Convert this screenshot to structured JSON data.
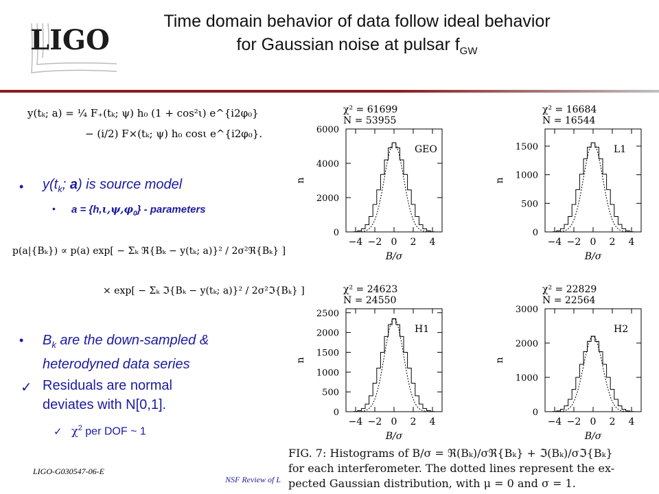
{
  "header": {
    "logo_text": "LIGO",
    "title_line1": "Time domain behavior of data follow ideal behavior",
    "title_line2": "for Gaussian noise at pulsar f",
    "title_sub": "GW"
  },
  "equations": {
    "eq1_line1": "y(tₖ; a) = ¼ F₊(tₖ; ψ) h₀ (1 + cos²ι) e^{i2φ₀}",
    "eq1_line2": "− (i/2) F×(tₖ; ψ) h₀ cosι e^{i2φ₀}.",
    "eq2_line1": "p(a|{Bₖ}) ∝ p(a) exp[ − Σₖ ℜ{Bₖ − y(tₖ; a)}² / 2σ²ℜ{Bₖ} ]",
    "eq2_line2": "× exp[ − Σₖ ℑ{Bₖ − y(tₖ; a)}² / 2σ²ℑ{Bₖ} ]"
  },
  "bullets": {
    "b1_a": "y(t",
    "b1_sub": "k",
    "b1_b": "; ",
    "b1_c": "a",
    "b1_d": ") is source model",
    "b1_1": "a = {h,",
    "b1_1b": "ι,ψ,φ",
    "b1_1sub": "0",
    "b1_1c": "} - parameters",
    "b2_a": "B",
    "b2_sub": "k",
    "b2_b": " are the down-sampled &",
    "b2_c": "heterodyned data series",
    "b3_line1": "Residuals are normal",
    "b3_line2": "deviates with N[0,1].",
    "b3_1_a": "χ",
    "b3_1_sup": "2",
    "b3_1_b": " per DOF ~ 1"
  },
  "footer": {
    "left": "LIGO-G030547-06-E",
    "center": "NSF Review of L"
  },
  "caption": {
    "line1": "FIG. 7: Histograms of B/σ = ℜ(Bₖ)/σℜ{Bₖ} + ℑ(Bₖ)/σℑ{Bₖ}",
    "line2": "for each interferometer.  The dotted lines represent the ex-",
    "line3": "pected Gaussian distribution, with μ = 0 and σ = 1."
  },
  "chart_data": [
    {
      "type": "bar",
      "label": "GEO",
      "chi2_text": "χ² = 61699",
      "n_text": "N = 53955",
      "xlabel": "B/σ",
      "ylabel": "n",
      "xlim": [
        -5,
        5
      ],
      "xticks": [
        -4,
        -2,
        0,
        2,
        4
      ],
      "ylim": [
        0,
        6000
      ],
      "yticks": [
        0,
        2000,
        4000,
        6000
      ],
      "gaussian_dotted": true,
      "hist_x": [
        -4.0,
        -3.6,
        -3.2,
        -2.8,
        -2.4,
        -2.0,
        -1.6,
        -1.2,
        -0.8,
        -0.4,
        0.0,
        0.4,
        0.8,
        1.2,
        1.6,
        2.0,
        2.4,
        2.8,
        3.2,
        3.6,
        4.0
      ],
      "hist_n": [
        10,
        60,
        180,
        420,
        900,
        1600,
        2450,
        3350,
        4200,
        4900,
        5200,
        4900,
        4200,
        3350,
        2450,
        1600,
        900,
        420,
        180,
        60,
        10
      ]
    },
    {
      "type": "bar",
      "label": "L1",
      "chi2_text": "χ² = 16684",
      "n_text": "N = 16544",
      "xlabel": "B/σ",
      "ylabel": "n",
      "xlim": [
        -5,
        5
      ],
      "xticks": [
        -4,
        -2,
        0,
        2,
        4
      ],
      "ylim": [
        0,
        1800
      ],
      "yticks": [
        0,
        500,
        1000,
        1500
      ],
      "gaussian_dotted": true,
      "hist_x": [
        -4.0,
        -3.6,
        -3.2,
        -2.8,
        -2.4,
        -2.0,
        -1.6,
        -1.2,
        -0.8,
        -0.4,
        0.0,
        0.4,
        0.8,
        1.2,
        1.6,
        2.0,
        2.4,
        2.8,
        3.2,
        3.6,
        4.0
      ],
      "hist_n": [
        3,
        18,
        55,
        130,
        270,
        480,
        740,
        1010,
        1280,
        1480,
        1560,
        1480,
        1280,
        1010,
        740,
        480,
        270,
        130,
        55,
        18,
        3
      ]
    },
    {
      "type": "bar",
      "label": "H1",
      "chi2_text": "χ² = 24623",
      "n_text": "N = 24550",
      "xlabel": "B/σ",
      "ylabel": "n",
      "xlim": [
        -5,
        5
      ],
      "xticks": [
        -4,
        -2,
        0,
        2,
        4
      ],
      "ylim": [
        0,
        2600
      ],
      "yticks": [
        0,
        500,
        1000,
        1500,
        2000,
        2500
      ],
      "gaussian_dotted": true,
      "hist_x": [
        -4.0,
        -3.6,
        -3.2,
        -2.8,
        -2.4,
        -2.0,
        -1.6,
        -1.2,
        -0.8,
        -0.4,
        0.0,
        0.4,
        0.8,
        1.2,
        1.6,
        2.0,
        2.4,
        2.8,
        3.2,
        3.6,
        4.0
      ],
      "hist_n": [
        5,
        25,
        80,
        190,
        400,
        720,
        1100,
        1500,
        1900,
        2200,
        2350,
        2200,
        1900,
        1500,
        1100,
        720,
        400,
        190,
        80,
        25,
        5
      ]
    },
    {
      "type": "bar",
      "label": "H2",
      "chi2_text": "χ² = 22829",
      "n_text": "N = 22564",
      "xlabel": "B/σ",
      "ylabel": "n",
      "xlim": [
        -5,
        5
      ],
      "xticks": [
        -4,
        -2,
        0,
        2,
        4
      ],
      "ylim": [
        0,
        3000
      ],
      "yticks": [
        0,
        1000,
        2000,
        3000
      ],
      "gaussian_dotted": true,
      "hist_x": [
        -4.0,
        -3.6,
        -3.2,
        -2.8,
        -2.4,
        -2.0,
        -1.6,
        -1.2,
        -0.8,
        -0.4,
        0.0,
        0.4,
        0.8,
        1.2,
        1.6,
        2.0,
        2.4,
        2.8,
        3.2,
        3.6,
        4.0
      ],
      "hist_n": [
        5,
        22,
        70,
        170,
        360,
        650,
        1000,
        1380,
        1750,
        2050,
        2200,
        2050,
        1750,
        1380,
        1000,
        650,
        360,
        170,
        70,
        22,
        5
      ]
    }
  ]
}
